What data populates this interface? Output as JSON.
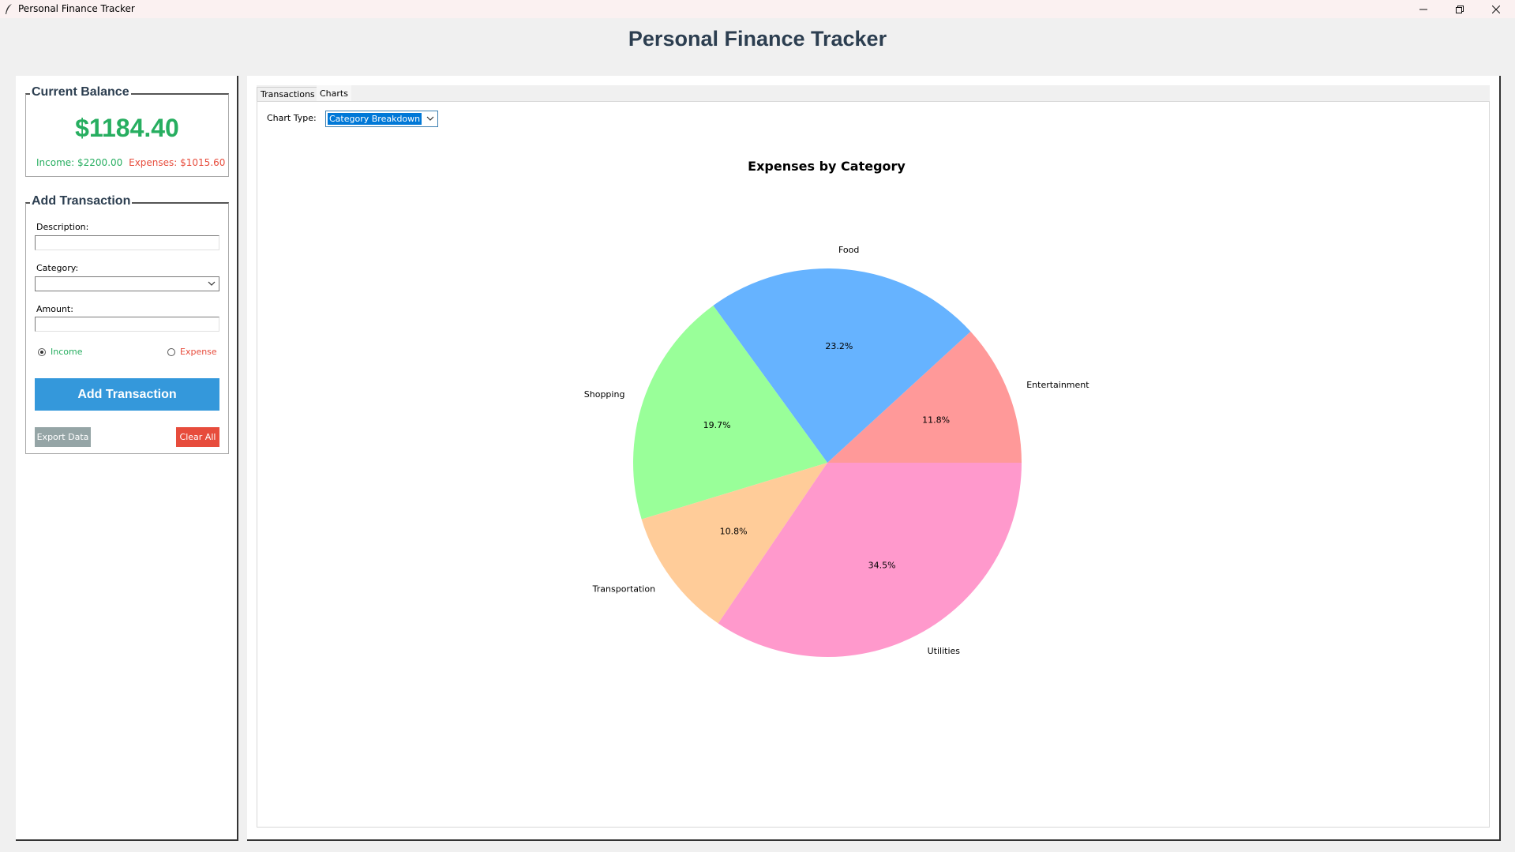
{
  "window": {
    "title": "Personal Finance Tracker"
  },
  "header": {
    "title": "Personal Finance Tracker"
  },
  "balance": {
    "group_title": "Current Balance",
    "amount": "$1184.40",
    "income_text": "Income: $2200.00",
    "expenses_text": "Expenses: $1015.60"
  },
  "form": {
    "group_title": "Add Transaction",
    "description_label": "Description:",
    "description_value": "",
    "category_label": "Category:",
    "category_value": "",
    "amount_label": "Amount:",
    "amount_value": "",
    "income_label": "Income",
    "expense_label": "Expense",
    "selected_type": "Income",
    "add_button": "Add Transaction",
    "export_button": "Export Data",
    "clear_button": "Clear All"
  },
  "tabs": [
    {
      "label": "Transactions",
      "active": false
    },
    {
      "label": "Charts",
      "active": true
    }
  ],
  "charts_tab": {
    "chart_type_label": "Chart Type:",
    "chart_type_value": "Category Breakdown"
  },
  "colors": {
    "income": "#27ae60",
    "expense": "#e74c3c",
    "accent": "#3498db",
    "title": "#2c3e50"
  },
  "chart_data": {
    "type": "pie",
    "title": "Expenses by Category",
    "start_angle_deg": 0,
    "direction": "counterclockwise",
    "slices": [
      {
        "label": "Entertainment",
        "percent": 11.8,
        "pct_label": "11.8%",
        "color": "#ff9999"
      },
      {
        "label": "Food",
        "percent": 23.2,
        "pct_label": "23.2%",
        "color": "#66b3ff"
      },
      {
        "label": "Shopping",
        "percent": 19.7,
        "pct_label": "19.7%",
        "color": "#99ff99"
      },
      {
        "label": "Transportation",
        "percent": 10.8,
        "pct_label": "10.8%",
        "color": "#ffcc99"
      },
      {
        "label": "Utilities",
        "percent": 34.5,
        "pct_label": "34.5%",
        "color": "#ff99cc"
      }
    ]
  }
}
